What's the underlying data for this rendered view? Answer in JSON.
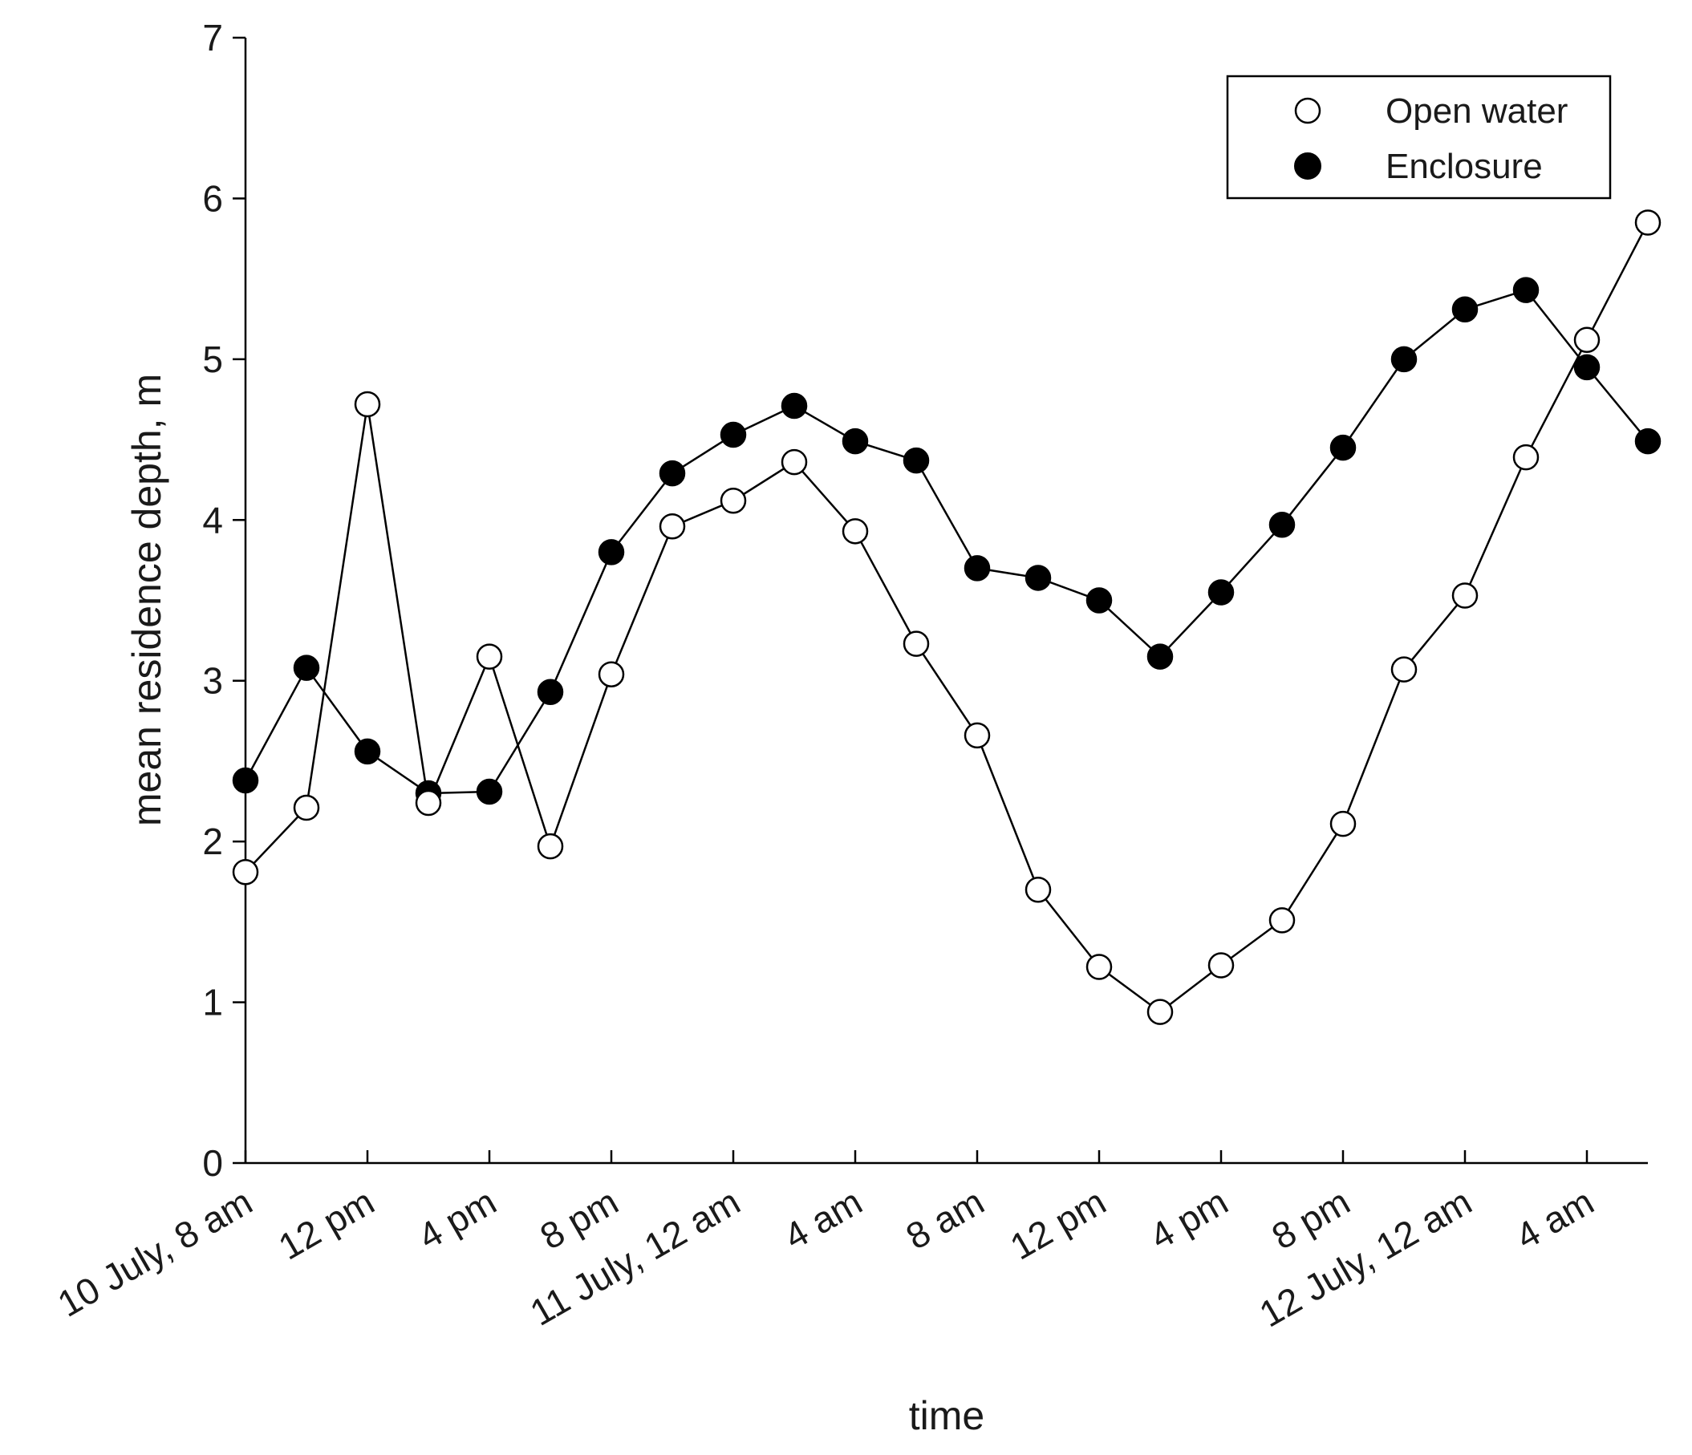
{
  "chart_data": {
    "type": "line",
    "title": "",
    "xlabel": "time",
    "ylabel": "mean residence depth, m",
    "ylim": [
      0,
      7
    ],
    "yticks": [
      0,
      1,
      2,
      3,
      4,
      5,
      6,
      7
    ],
    "x_unit": "hours since 10 July 8 am",
    "xlim": [
      0,
      46
    ],
    "x_ticks": [
      {
        "x": 0,
        "label": "10 July, 8 am"
      },
      {
        "x": 4,
        "label": "12 pm"
      },
      {
        "x": 8,
        "label": "4 pm"
      },
      {
        "x": 12,
        "label": "8 pm"
      },
      {
        "x": 16,
        "label": "11 July, 12 am"
      },
      {
        "x": 20,
        "label": "4 am"
      },
      {
        "x": 24,
        "label": "8 am"
      },
      {
        "x": 28,
        "label": "12 pm"
      },
      {
        "x": 32,
        "label": "4 pm"
      },
      {
        "x": 36,
        "label": "8 pm"
      },
      {
        "x": 40,
        "label": "12 July, 12 am"
      },
      {
        "x": 44,
        "label": "4 am"
      }
    ],
    "x": [
      0,
      2,
      4,
      6,
      8,
      10,
      12,
      14,
      16,
      18,
      20,
      22,
      24,
      26,
      28,
      30,
      32,
      34,
      36,
      38,
      40,
      42,
      44,
      46
    ],
    "series": [
      {
        "name": "Open water",
        "marker": "open-circle",
        "values": [
          1.81,
          2.21,
          4.72,
          2.24,
          3.15,
          1.97,
          3.04,
          3.96,
          4.12,
          4.36,
          3.93,
          3.23,
          2.66,
          1.7,
          1.22,
          0.94,
          1.23,
          1.51,
          2.11,
          3.07,
          3.53,
          4.39,
          5.12,
          5.85
        ]
      },
      {
        "name": "Enclosure",
        "marker": "filled-circle",
        "values": [
          2.38,
          3.08,
          2.56,
          2.3,
          2.31,
          2.93,
          3.8,
          4.29,
          4.53,
          4.71,
          4.49,
          4.37,
          3.7,
          3.64,
          3.5,
          3.15,
          3.55,
          3.97,
          4.45,
          5.0,
          5.31,
          5.43,
          4.95,
          4.49
        ]
      }
    ],
    "legend": {
      "position": "top-right",
      "entries": [
        "Open water",
        "Enclosure"
      ]
    },
    "grid": false
  }
}
